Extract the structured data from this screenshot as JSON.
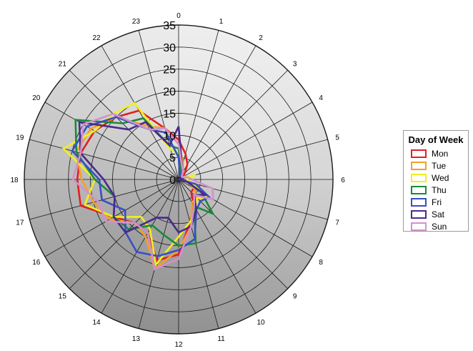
{
  "chart_data": {
    "type": "radar",
    "angle_labels": [
      "0",
      "1",
      "2",
      "3",
      "4",
      "5",
      "6",
      "7",
      "8",
      "9",
      "10",
      "11",
      "12",
      "13",
      "14",
      "15",
      "16",
      "17",
      "18",
      "19",
      "20",
      "21",
      "22",
      "23"
    ],
    "radial_ticks": [
      "0",
      "5",
      "10",
      "15",
      "20",
      "25",
      "30",
      "35"
    ],
    "rmax": 35,
    "legend_title": "Day of Week",
    "series": [
      {
        "name": "Mon",
        "color": "#e02020",
        "values": [
          9,
          6,
          4,
          2,
          1,
          1,
          0,
          2,
          4,
          4,
          7,
          10,
          17,
          19,
          14,
          14,
          17,
          23,
          23,
          23,
          22,
          20,
          18,
          12
        ]
      },
      {
        "name": "Tue",
        "color": "#f2a02a",
        "values": [
          8,
          4,
          2,
          1,
          1,
          1,
          1,
          2,
          4,
          6,
          6,
          11,
          16,
          21,
          15,
          14,
          18,
          20,
          22,
          24,
          23,
          20,
          14,
          12
        ]
      },
      {
        "name": "Wed",
        "color": "#f0f020",
        "values": [
          6,
          2,
          1,
          1,
          1,
          4,
          2,
          3,
          8,
          6,
          8,
          10,
          13,
          20,
          13,
          12,
          17,
          22,
          19,
          27,
          22,
          21,
          20,
          7
        ]
      },
      {
        "name": "Thu",
        "color": "#1a8a3a",
        "values": [
          7,
          2,
          1,
          1,
          1,
          1,
          1,
          2,
          6,
          11,
          7,
          15,
          15,
          13,
          12,
          16,
          17,
          15,
          19,
          24,
          27,
          18,
          16,
          8
        ]
      },
      {
        "name": "Fri",
        "color": "#3a4ec4",
        "values": [
          5,
          1,
          1,
          1,
          1,
          1,
          0,
          4,
          8,
          7,
          8,
          14,
          16,
          18,
          19,
          17,
          14,
          18,
          18,
          25,
          24,
          20,
          13,
          11
        ]
      },
      {
        "name": "Sat",
        "color": "#4a2a8a",
        "values": [
          12,
          3,
          2,
          1,
          1,
          1,
          0,
          2,
          7,
          5,
          8,
          11,
          12,
          9,
          10,
          17,
          17,
          15,
          17,
          23,
          26,
          16,
          15,
          8
        ]
      },
      {
        "name": "Sun",
        "color": "#d291cc",
        "values": [
          8,
          3,
          2,
          1,
          1,
          2,
          3,
          8,
          9,
          5,
          7,
          11,
          18,
          21,
          14,
          14,
          19,
          19,
          24,
          23,
          25,
          21,
          13,
          12
        ]
      }
    ]
  }
}
